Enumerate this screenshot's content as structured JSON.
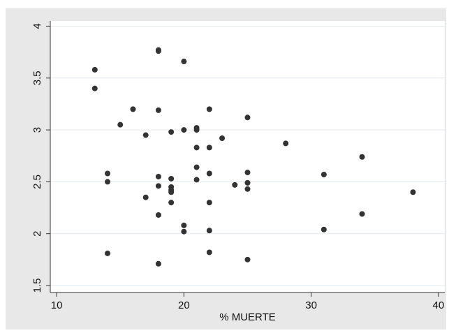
{
  "chart_data": {
    "type": "scatter",
    "title": "",
    "xlabel": "% MUERTE",
    "ylabel": "",
    "xlim": [
      9.5,
      40.5
    ],
    "ylim": [
      1.5,
      4.0
    ],
    "xticks": [
      10,
      20,
      30,
      40
    ],
    "yticks": [
      1.5,
      2,
      2.5,
      3,
      3.5,
      4
    ],
    "xtick_labels": [
      "10",
      "20",
      "30",
      "40"
    ],
    "ytick_labels": [
      "1.5",
      "2",
      "2.5",
      "3",
      "3.5",
      "4"
    ],
    "grid": "horizontal",
    "legend": "none",
    "colors": {
      "outer_background": "#e8e8e8",
      "plot_background": "#ffffff",
      "gridline": "#e3e8ee",
      "axis": "#333333",
      "marker": "#333333"
    },
    "series": [
      {
        "points": [
          [
            13,
            3.58
          ],
          [
            13,
            3.4
          ],
          [
            14,
            2.58
          ],
          [
            14,
            2.5
          ],
          [
            14,
            1.81
          ],
          [
            15,
            3.05
          ],
          [
            16,
            3.2
          ],
          [
            17,
            2.95
          ],
          [
            17,
            2.35
          ],
          [
            18,
            3.77
          ],
          [
            18,
            3.76
          ],
          [
            18,
            3.19
          ],
          [
            18,
            2.55
          ],
          [
            18,
            2.46
          ],
          [
            18,
            2.18
          ],
          [
            18,
            1.71
          ],
          [
            19,
            2.98
          ],
          [
            19,
            2.53
          ],
          [
            19,
            2.45
          ],
          [
            19,
            2.42
          ],
          [
            19,
            2.4
          ],
          [
            19,
            2.3
          ],
          [
            20,
            3.66
          ],
          [
            20,
            3.0
          ],
          [
            20,
            2.08
          ],
          [
            20,
            2.02
          ],
          [
            21,
            3.02
          ],
          [
            21,
            3.0
          ],
          [
            21,
            2.83
          ],
          [
            21,
            2.64
          ],
          [
            21,
            2.52
          ],
          [
            22,
            3.2
          ],
          [
            22,
            2.83
          ],
          [
            22,
            2.58
          ],
          [
            22,
            2.3
          ],
          [
            22,
            2.03
          ],
          [
            22,
            1.82
          ],
          [
            23,
            2.92
          ],
          [
            24,
            2.47
          ],
          [
            25,
            3.12
          ],
          [
            25,
            2.59
          ],
          [
            25,
            2.49
          ],
          [
            25,
            2.43
          ],
          [
            25,
            1.75
          ],
          [
            28,
            2.87
          ],
          [
            31,
            2.57
          ],
          [
            31,
            2.04
          ],
          [
            34,
            2.74
          ],
          [
            34,
            2.19
          ],
          [
            38,
            2.4
          ]
        ]
      }
    ]
  }
}
